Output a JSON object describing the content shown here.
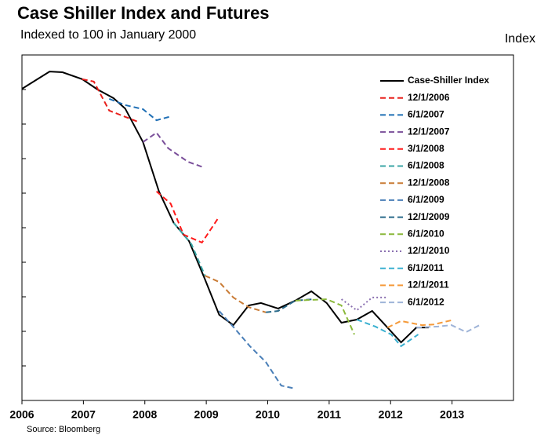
{
  "chart_data": {
    "type": "line",
    "title": "Case Shiller Index and Futures",
    "subtitle": "Indexed to 100 in January 2000",
    "y_label": "Index",
    "source": "Source: Bloomberg",
    "xlim": [
      2006,
      2014
    ],
    "xticks": [
      2006,
      2007,
      2008,
      2009,
      2010,
      2011,
      2012,
      2013
    ],
    "ylim": [
      110,
      210
    ],
    "yticks": [
      120,
      130,
      140,
      150,
      160,
      170,
      180,
      190,
      200
    ],
    "series": [
      {
        "name": "Case-Shiller Index",
        "color": "#000000",
        "dash": "solid",
        "x": [
          2006.0,
          2006.45,
          2006.66,
          2006.98,
          2007.23,
          2007.49,
          2007.68,
          2007.97,
          2008.23,
          2008.47,
          2008.72,
          2008.98,
          2009.21,
          2009.44,
          2009.69,
          2009.89,
          2010.17,
          2010.45,
          2010.71,
          2010.96,
          2011.2,
          2011.45,
          2011.7,
          2011.95,
          2012.17,
          2012.42,
          2012.62
        ],
        "values": [
          200.2,
          205.2,
          205.0,
          203.0,
          200.0,
          197.5,
          194.5,
          184.8,
          170.5,
          161.4,
          156.1,
          145.0,
          134.8,
          131.8,
          137.5,
          138.2,
          136.6,
          138.9,
          141.6,
          138.2,
          132.5,
          133.4,
          135.9,
          131.1,
          126.8,
          131.1,
          131.1
        ]
      },
      {
        "name": "12/1/2006",
        "color": "#e8201c",
        "dash": "dashed",
        "x": [
          2006.98,
          2007.17,
          2007.42,
          2007.68,
          2007.91
        ],
        "values": [
          203.0,
          202.3,
          193.9,
          192.1,
          190.5
        ]
      },
      {
        "name": "6/1/2007",
        "color": "#1f6fb5",
        "dash": "dashed",
        "x": [
          2007.42,
          2007.68,
          2007.97,
          2008.19,
          2008.44
        ],
        "values": [
          197.3,
          195.5,
          194.3,
          191.1,
          192.3
        ]
      },
      {
        "name": "12/1/2007",
        "color": "#7a4f9a",
        "dash": "dashed",
        "x": [
          2007.97,
          2008.19,
          2008.38,
          2008.7,
          2008.95
        ],
        "values": [
          184.8,
          187.5,
          183.0,
          179.1,
          177.5
        ]
      },
      {
        "name": "3/1/2008",
        "color": "#ff1a1a",
        "dash": "dashed",
        "x": [
          2008.19,
          2008.42,
          2008.63,
          2008.93,
          2009.21
        ],
        "values": [
          170.5,
          167.0,
          158.0,
          155.7,
          163.2
        ]
      },
      {
        "name": "6/1/2008",
        "color": "#3aa6a6",
        "dash": "dashed",
        "x": [
          2008.47,
          2008.76,
          2008.98
        ],
        "values": [
          161.4,
          155.2,
          146.1
        ]
      },
      {
        "name": "12/1/2008",
        "color": "#c97b35",
        "dash": "dashed",
        "x": [
          2008.98,
          2009.21,
          2009.44,
          2009.69,
          2009.97
        ],
        "values": [
          146.1,
          144.3,
          139.8,
          137.0,
          135.5
        ]
      },
      {
        "name": "6/1/2009",
        "color": "#4a7fb8",
        "dash": "dashed",
        "x": [
          2009.21,
          2009.46,
          2009.71,
          2009.97,
          2010.22,
          2010.45
        ],
        "values": [
          135.9,
          130.9,
          125.7,
          121.1,
          114.3,
          113.4
        ]
      },
      {
        "name": "12/1/2009",
        "color": "#2a6a8a",
        "dash": "dashed",
        "x": [
          2009.97,
          2010.17,
          2010.45,
          2010.73
        ],
        "values": [
          135.5,
          135.9,
          138.9,
          139.3
        ]
      },
      {
        "name": "6/1/2010",
        "color": "#8ab83a",
        "dash": "dashed",
        "x": [
          2010.45,
          2010.96,
          2011.2,
          2011.41
        ],
        "values": [
          138.9,
          139.3,
          137.5,
          129.1
        ]
      },
      {
        "name": "12/1/2010",
        "color": "#8a6fb0",
        "dash": "dotted",
        "x": [
          2011.2,
          2011.45,
          2011.7,
          2011.95
        ],
        "values": [
          139.3,
          136.1,
          139.8,
          139.8
        ]
      },
      {
        "name": "6/1/2011",
        "color": "#3ab0d0",
        "dash": "dashed",
        "x": [
          2011.45,
          2011.75,
          2012.01,
          2012.17,
          2012.45
        ],
        "values": [
          133.4,
          131.4,
          129.1,
          125.7,
          129.1
        ]
      },
      {
        "name": "12/1/2011",
        "color": "#f59a3a",
        "dash": "dashed",
        "x": [
          2011.95,
          2012.17,
          2012.51,
          2012.7,
          2012.99
        ],
        "values": [
          131.1,
          133.0,
          131.8,
          132.0,
          133.2
        ]
      },
      {
        "name": "6/1/2012",
        "color": "#9fb4d8",
        "dash": "dashed",
        "x": [
          2012.42,
          2012.77,
          2012.99,
          2013.23,
          2013.47
        ],
        "values": [
          131.1,
          131.4,
          131.8,
          129.8,
          132.0
        ]
      }
    ]
  }
}
